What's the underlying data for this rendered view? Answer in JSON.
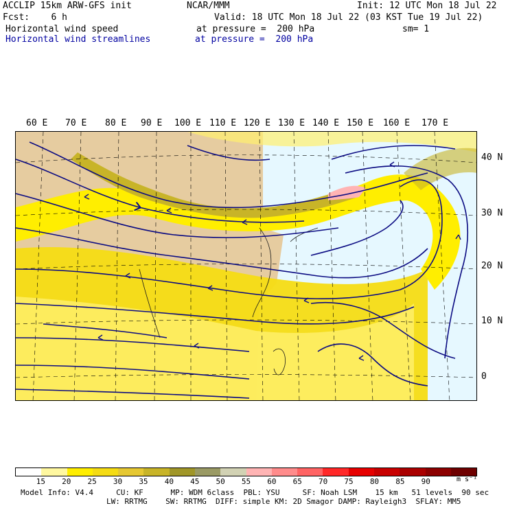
{
  "header": {
    "model_line": "ACCLIP 15km ARW-GFS init",
    "org": "NCAR/MMM",
    "init": "Init: 12 UTC Mon 18 Jul 22",
    "fcst": "Fcst:    6 h",
    "valid": "Valid: 18 UTC Mon 18 Jul 22 (03 KST Tue 19 Jul 22)",
    "field1": "Horizontal wind speed",
    "field1_level": "at pressure =  200 hPa",
    "smoothing": "sm= 1",
    "field2": "Horizontal wind streamlines",
    "field2_level": "at pressure =  200 hPa"
  },
  "axes": {
    "lon_labels": [
      "60 E",
      "70 E",
      "80 E",
      "90 E",
      "100 E",
      "110 E",
      "120 E",
      "130 E",
      "140 E",
      "150 E",
      "160 E",
      "170 E"
    ],
    "lat_labels": [
      "40 N",
      "30 N",
      "20 N",
      "10 N",
      "0"
    ]
  },
  "colorbar": {
    "labels": [
      "15",
      "20",
      "25",
      "30",
      "35",
      "40",
      "45",
      "50",
      "55",
      "60",
      "65",
      "70",
      "75",
      "80",
      "85",
      "90"
    ],
    "unit": "m s⁻¹",
    "colors": [
      "#ffffff",
      "#fff8a0",
      "#ffee00",
      "#f5dc14",
      "#e6c832",
      "#c8b428",
      "#a09628",
      "#9a9a64",
      "#d2d2b4",
      "#ffb4b4",
      "#ff8c8c",
      "#ff6464",
      "#ff2828",
      "#e60000",
      "#c80000",
      "#aa0000",
      "#8c0000",
      "#6e0000"
    ]
  },
  "footer": {
    "line1": "Model Info: V4.4     CU: KF      MP: WDM 6class  PBL: YSU     SF: Noah LSM    15 km   51 levels  90 sec",
    "line2": "LW: RRTMG    SW: RRTMG  DIFF: simple KM: 2D Smagor DAMP: Rayleigh3  SFLAY: MM5"
  },
  "colors": {
    "streamline": "#0a0a82",
    "land": "#e6cca0",
    "ocean": "#e6f8ff",
    "jet_core": "#b4aa5a"
  }
}
